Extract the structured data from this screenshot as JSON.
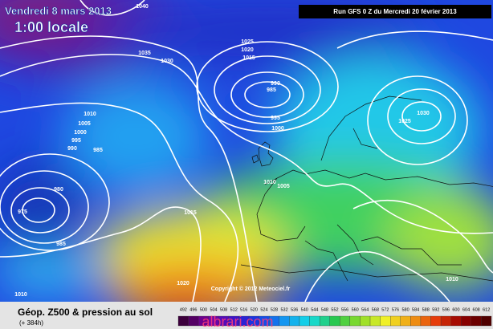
{
  "header": {
    "date": "Vendredi 8 mars 2013",
    "time": "1:00 locale",
    "run": "Run GFS 0 Z du Mercredi 20 février 2013"
  },
  "isobar_labels": [
    "1040",
    "1035",
    "1030",
    "1025",
    "1020",
    "1015",
    "990",
    "985",
    "995",
    "1000",
    "1010",
    "1005",
    "1000",
    "995",
    "990",
    "985",
    "980",
    "975",
    "985",
    "1015",
    "1010",
    "1005",
    "1025",
    "1030",
    "1020",
    "1010",
    "1010"
  ],
  "copyright": "Copyright © 2012 Meteociel.fr",
  "legend": {
    "title": "Géop. Z500 & pression au sol",
    "lead": "(+ 384h)",
    "scale": [
      492,
      496,
      500,
      504,
      508,
      512,
      516,
      520,
      524,
      528,
      532,
      536,
      540,
      544,
      548,
      552,
      556,
      560,
      564,
      568,
      572,
      576,
      580,
      584,
      588,
      592,
      596,
      600,
      604,
      608,
      612
    ]
  },
  "watermark": "albrari.com"
}
